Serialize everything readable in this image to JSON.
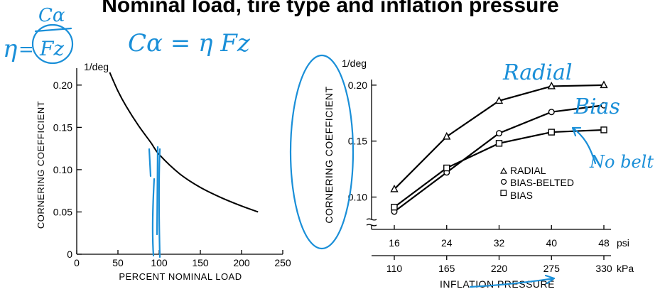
{
  "title": "Nominal load, tire type and inflation pressure",
  "chart_data": [
    {
      "type": "line",
      "unit": "1/deg",
      "ylabel": "CORNERING COEFFICIENT",
      "xlabel": "PERCENT  NOMINAL  LOAD",
      "xlim": [
        0,
        250
      ],
      "ylim": [
        0,
        0.22
      ],
      "x_ticks": [
        "0",
        "50",
        "100",
        "150",
        "200",
        "250"
      ],
      "y_ticks": [
        "0",
        "0.05",
        "0.10",
        "0.15",
        "0.20"
      ],
      "series": [
        {
          "x": [
            40,
            50,
            60,
            75,
            90,
            100,
            125,
            150,
            175,
            200,
            220
          ],
          "values": [
            0.215,
            0.193,
            0.175,
            0.152,
            0.132,
            0.118,
            0.095,
            0.079,
            0.067,
            0.057,
            0.05
          ]
        }
      ]
    },
    {
      "type": "line",
      "unit": "1/deg",
      "ylabel": "CORNERING COEFFICIENT",
      "xlabel": "INFLATION PRESSURE",
      "categories_psi": [
        "16",
        "24",
        "32",
        "40",
        "48"
      ],
      "psi_unit": "psi",
      "categories_kpa": [
        "110",
        "165",
        "220",
        "275",
        "330"
      ],
      "kpa_unit": "kPa",
      "ylim": [
        0.08,
        0.205
      ],
      "y_ticks": [
        "0.10",
        "0.15",
        "0.20"
      ],
      "legend": "center-right",
      "series": [
        {
          "name": "RADIAL",
          "marker": "triangle",
          "values": [
            0.107,
            0.154,
            0.186,
            0.199,
            0.2
          ]
        },
        {
          "name": "BIAS-BELTED",
          "marker": "circle",
          "values": [
            0.087,
            0.122,
            0.157,
            0.176,
            0.182
          ]
        },
        {
          "name": "BIAS",
          "marker": "square",
          "values": [
            0.091,
            0.126,
            0.148,
            0.158,
            0.16
          ]
        }
      ]
    }
  ],
  "annotations": {
    "eta_label": "η",
    "eq_sign": "=",
    "frac_num": "Cα",
    "frac_den": "Fz",
    "formula": "Cα = η Fz",
    "radial": "Radial",
    "bias": "Bias",
    "no_belt": "No belt"
  }
}
